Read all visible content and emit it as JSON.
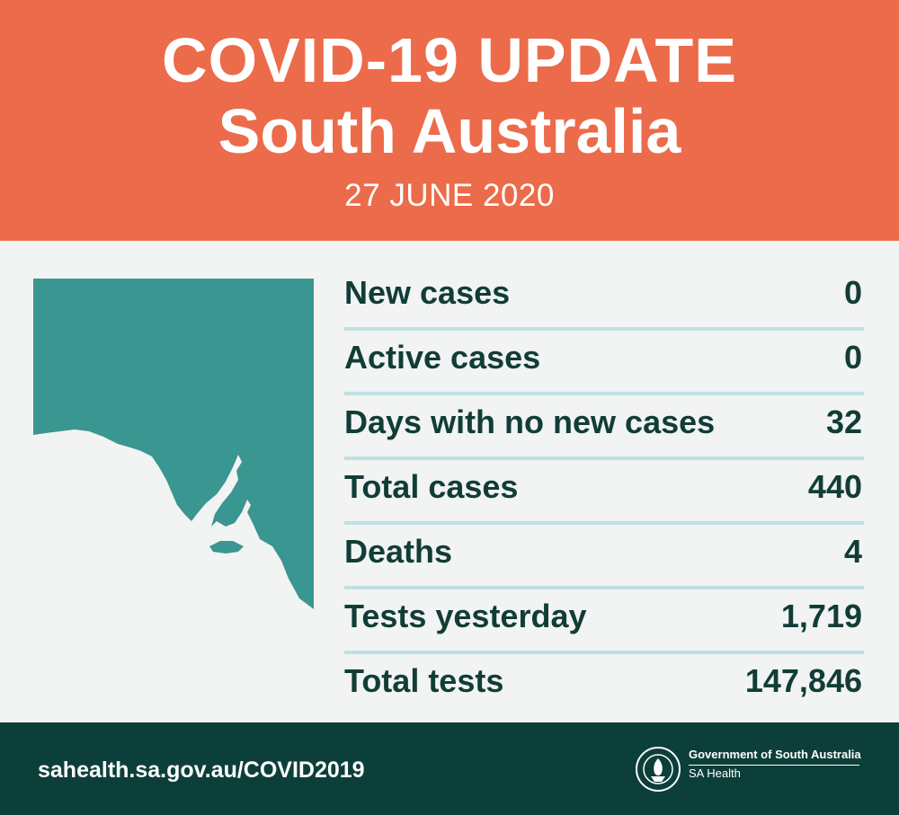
{
  "header": {
    "title": "COVID-19 UPDATE",
    "subtitle": "South Australia",
    "date": "27 JUNE 2020"
  },
  "map": {
    "icon": "south-australia-map-icon",
    "color": "#3a9690"
  },
  "stats": [
    {
      "label": "New cases",
      "value": "0"
    },
    {
      "label": "Active cases",
      "value": "0"
    },
    {
      "label": "Days with no new cases",
      "value": "32"
    },
    {
      "label": "Total cases",
      "value": "440"
    },
    {
      "label": "Deaths",
      "value": "4"
    },
    {
      "label": "Tests yesterday",
      "value": "1,719"
    },
    {
      "label": "Total tests",
      "value": "147,846"
    }
  ],
  "footer": {
    "url": "sahealth.sa.gov.au/COVID2019",
    "government": "Government of South Australia",
    "department": "SA Health",
    "seal_icon": "sa-government-seal-icon"
  },
  "colors": {
    "header_bg": "#ec6b4a",
    "body_bg": "#f2f3f3",
    "text_dark": "#113d37",
    "rule": "#bfe0e0",
    "footer_bg": "#0d3f3a"
  }
}
